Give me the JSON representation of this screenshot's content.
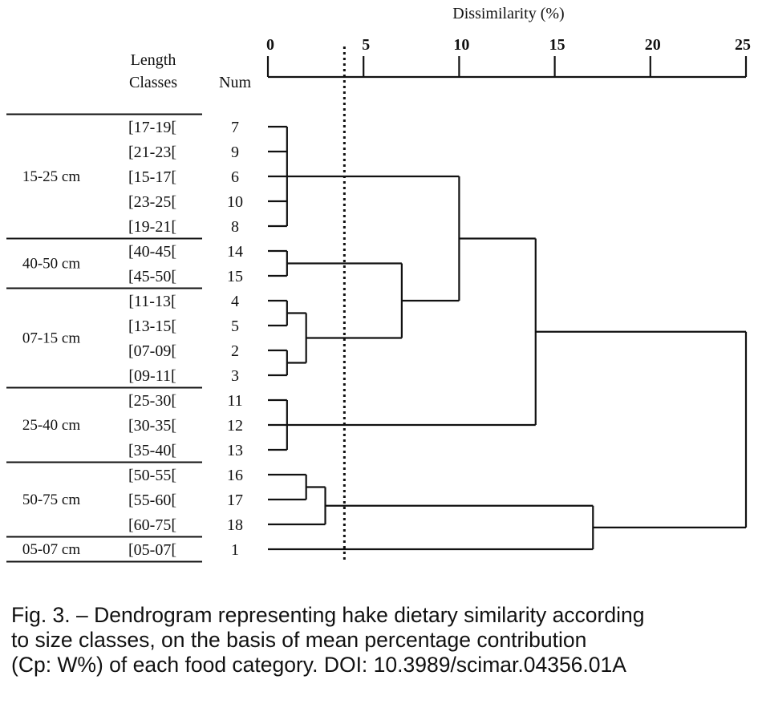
{
  "axis": {
    "title": "Dissimilarity (%)",
    "ticks": [
      0,
      5,
      10,
      15,
      20,
      25
    ],
    "range": [
      0,
      25
    ],
    "cutoff_line": 4
  },
  "headers": {
    "length_classes_line1": "Length",
    "length_classes_line2": "Classes",
    "num": "Num"
  },
  "groups": [
    {
      "label": "15-25 cm",
      "rows": [
        0,
        4
      ]
    },
    {
      "label": "40-50 cm",
      "rows": [
        5,
        6
      ]
    },
    {
      "label": "07-15 cm",
      "rows": [
        7,
        10
      ]
    },
    {
      "label": "25-40 cm",
      "rows": [
        11,
        13
      ]
    },
    {
      "label": "50-75 cm",
      "rows": [
        14,
        16
      ]
    },
    {
      "label": "05-07 cm",
      "rows": [
        17,
        17
      ]
    }
  ],
  "leaves": [
    {
      "class": "[17-19[",
      "num": "7"
    },
    {
      "class": "[21-23[",
      "num": "9"
    },
    {
      "class": "[15-17[",
      "num": "6"
    },
    {
      "class": "[23-25[",
      "num": "10"
    },
    {
      "class": "[19-21[",
      "num": "8"
    },
    {
      "class": "[40-45[",
      "num": "14"
    },
    {
      "class": "[45-50[",
      "num": "15"
    },
    {
      "class": "[11-13[",
      "num": "4"
    },
    {
      "class": "[13-15[",
      "num": "5"
    },
    {
      "class": "[07-09[",
      "num": "2"
    },
    {
      "class": "[09-11[",
      "num": "3"
    },
    {
      "class": "[25-30[",
      "num": "11"
    },
    {
      "class": "[30-35[",
      "num": "12"
    },
    {
      "class": "[35-40[",
      "num": "13"
    },
    {
      "class": "[50-55[",
      "num": "16"
    },
    {
      "class": "[55-60[",
      "num": "17"
    },
    {
      "class": "[60-75[",
      "num": "18"
    },
    {
      "class": "[05-07[",
      "num": "1"
    }
  ],
  "merges": [
    {
      "members": [
        0,
        1,
        2,
        3,
        4
      ],
      "height": 1
    },
    {
      "members": [
        5,
        6
      ],
      "height": 1
    },
    {
      "members": [
        7,
        8
      ],
      "height": 1
    },
    {
      "members": [
        9,
        10
      ],
      "height": 1
    },
    {
      "members": [
        11,
        12,
        13
      ],
      "height": 1
    },
    {
      "members": [
        14,
        15
      ],
      "height": 2
    },
    {
      "members": [
        "m2",
        "m3"
      ],
      "height": 2
    },
    {
      "members": [
        "m5",
        16
      ],
      "height": 3
    },
    {
      "members": [
        "m1",
        "m6"
      ],
      "height": 7
    },
    {
      "members": [
        "m0",
        "m8"
      ],
      "height": 10
    },
    {
      "members": [
        "m9",
        "m4"
      ],
      "height": 14
    },
    {
      "members": [
        "m7",
        17
      ],
      "height": 17
    },
    {
      "members": [
        "m10",
        "m11"
      ],
      "height": 25
    }
  ],
  "caption": {
    "line1": "Fig. 3. – Dendrogram representing hake dietary similarity according",
    "line2": "to size classes, on the basis of mean percentage contribution",
    "line3": "(Cp: W%) of each food category. DOI: 10.3989/scimar.04356.01A"
  }
}
